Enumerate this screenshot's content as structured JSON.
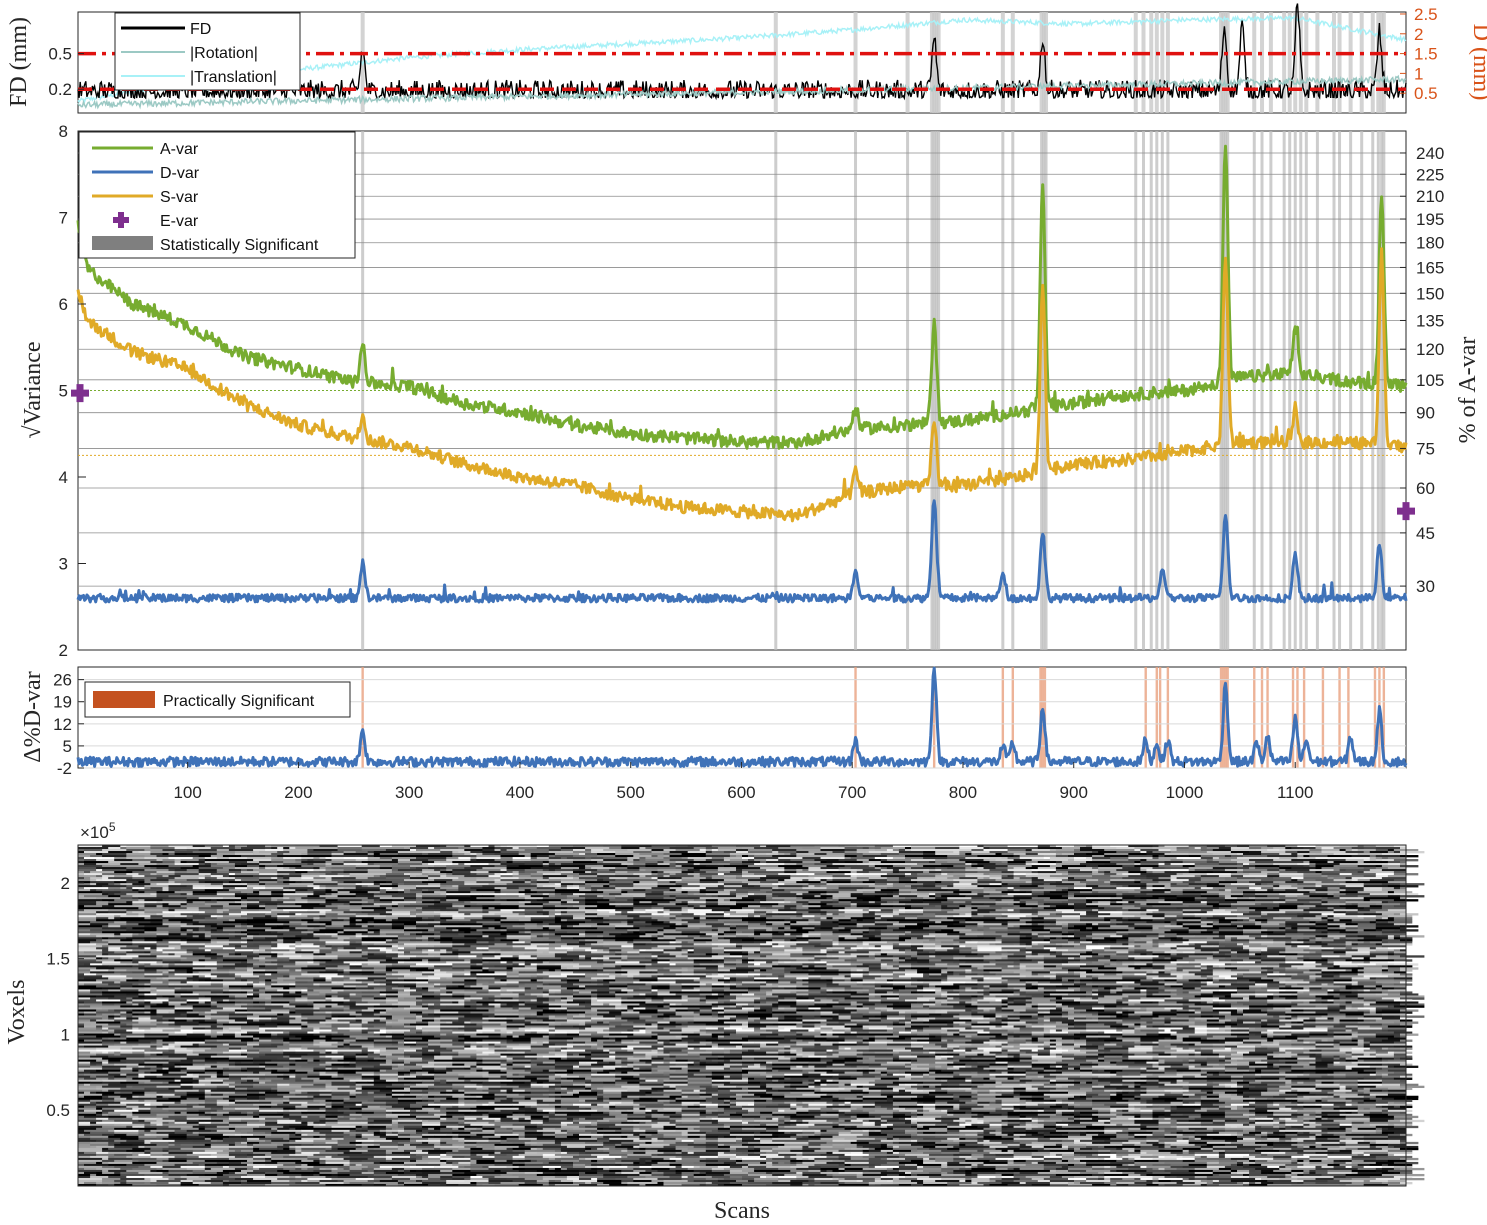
{
  "chart_data": [
    {
      "type": "line",
      "panel": "motion",
      "ylabel_left": "FD (mm)",
      "ylabel_right": "D (mm)",
      "yticks_left": [
        "0.2",
        "0.5"
      ],
      "ylim_left": [
        0,
        0.85
      ],
      "yticks_right": [
        "0.5",
        "1",
        "1.5",
        "2",
        "2.5"
      ],
      "ylim_right": [
        0,
        2.55
      ],
      "xlim": [
        1,
        1200
      ],
      "thresholds": [
        0.5,
        0.2
      ],
      "series": [
        {
          "name": "FD",
          "color": "#000000",
          "axis": "left",
          "baseline": 0.18,
          "noise": 0.07,
          "spikes": [
            [
              258,
              0.35
            ],
            [
              774,
              0.45
            ],
            [
              872,
              0.45
            ],
            [
              1036,
              0.55
            ],
            [
              1052,
              0.55
            ],
            [
              1102,
              0.7
            ],
            [
              1176,
              0.5
            ]
          ]
        },
        {
          "name": "|Rotation|",
          "color": "#9cc9c4",
          "axis": "right",
          "start": 0.2,
          "end": 0.85,
          "noise": 0.08
        },
        {
          "name": "|Translation|",
          "color": "#a8f1f7",
          "axis": "right",
          "points": [
            [
              1,
              0.3
            ],
            [
              100,
              0.8
            ],
            [
              300,
              1.4
            ],
            [
              400,
              1.6
            ],
            [
              600,
              1.9
            ],
            [
              700,
              2.1
            ],
            [
              800,
              2.35
            ],
            [
              900,
              2.25
            ],
            [
              1000,
              2.35
            ],
            [
              1100,
              2.4
            ],
            [
              1200,
              1.85
            ]
          ]
        }
      ],
      "legend": [
        "FD",
        "|Rotation|",
        "|Translation|"
      ]
    },
    {
      "type": "line",
      "panel": "dvars",
      "ylabel_left": "√Variance",
      "ylabel_right": "% of A-var",
      "yticks_left": [
        "2",
        "3",
        "4",
        "5",
        "6",
        "7",
        "8"
      ],
      "ylim": [
        2,
        8
      ],
      "yticks_right": [
        "30",
        "45",
        "60",
        "75",
        "90",
        "105",
        "120",
        "135",
        "150",
        "165",
        "180",
        "195",
        "210",
        "225",
        "240"
      ],
      "xlim": [
        1,
        1200
      ],
      "series": [
        {
          "name": "A-var",
          "color": "#77ac30",
          "points": [
            [
              1,
              6.9
            ],
            [
              10,
              6.4
            ],
            [
              50,
              6.0
            ],
            [
              100,
              5.75
            ],
            [
              150,
              5.4
            ],
            [
              200,
              5.25
            ],
            [
              250,
              5.1
            ],
            [
              300,
              5.05
            ],
            [
              350,
              4.85
            ],
            [
              400,
              4.75
            ],
            [
              450,
              4.6
            ],
            [
              500,
              4.5
            ],
            [
              550,
              4.45
            ],
            [
              600,
              4.4
            ],
            [
              650,
              4.4
            ],
            [
              700,
              4.55
            ],
            [
              750,
              4.6
            ],
            [
              800,
              4.65
            ],
            [
              850,
              4.75
            ],
            [
              900,
              4.85
            ],
            [
              950,
              4.95
            ],
            [
              1000,
              5.0
            ],
            [
              1050,
              5.15
            ],
            [
              1100,
              5.2
            ],
            [
              1150,
              5.1
            ],
            [
              1200,
              5.05
            ]
          ],
          "spikes": [
            [
              258,
              0.45
            ],
            [
              703,
              0.25
            ],
            [
              774,
              1.2
            ],
            [
              872,
              2.6
            ],
            [
              1037,
              2.7
            ],
            [
              1100,
              0.5
            ],
            [
              1178,
              2.2
            ]
          ]
        },
        {
          "name": "D-var",
          "color": "#3f72b8",
          "points": [
            [
              1,
              2.6
            ],
            [
              1200,
              2.6
            ]
          ],
          "spikes": [
            [
              258,
              0.4
            ],
            [
              703,
              0.3
            ],
            [
              774,
              1.15
            ],
            [
              836,
              0.3
            ],
            [
              872,
              0.75
            ],
            [
              980,
              0.3
            ],
            [
              1037,
              0.95
            ],
            [
              1100,
              0.5
            ],
            [
              1176,
              0.6
            ]
          ]
        },
        {
          "name": "S-var",
          "color": "#e0aa27",
          "points": [
            [
              1,
              6.15
            ],
            [
              10,
              5.8
            ],
            [
              50,
              5.45
            ],
            [
              100,
              5.25
            ],
            [
              150,
              4.85
            ],
            [
              200,
              4.6
            ],
            [
              250,
              4.45
            ],
            [
              300,
              4.35
            ],
            [
              350,
              4.15
            ],
            [
              400,
              4.0
            ],
            [
              450,
              3.9
            ],
            [
              500,
              3.75
            ],
            [
              550,
              3.65
            ],
            [
              600,
              3.6
            ],
            [
              650,
              3.55
            ],
            [
              700,
              3.8
            ],
            [
              750,
              3.9
            ],
            [
              800,
              3.9
            ],
            [
              850,
              4.0
            ],
            [
              900,
              4.15
            ],
            [
              950,
              4.2
            ],
            [
              1000,
              4.3
            ],
            [
              1050,
              4.4
            ],
            [
              1100,
              4.4
            ],
            [
              1150,
              4.4
            ],
            [
              1200,
              4.35
            ]
          ],
          "spikes": [
            [
              258,
              0.3
            ],
            [
              703,
              0.25
            ],
            [
              774,
              0.75
            ],
            [
              872,
              2.2
            ],
            [
              1037,
              2.15
            ],
            [
              1100,
              0.4
            ],
            [
              1178,
              2.2
            ]
          ]
        }
      ],
      "evar": {
        "name": "E-var",
        "color": "#7e2f8e",
        "value_left": 4.97,
        "value_right_pct": 52
      },
      "reference_lines": [
        {
          "color": "#77ac30",
          "y": 5.0
        },
        {
          "color": "#e0aa27",
          "y": 4.25
        }
      ],
      "significant_scans": [
        258,
        631,
        703,
        750,
        772,
        774,
        776,
        778,
        836,
        845,
        871,
        873,
        875,
        956,
        963,
        970,
        975,
        980,
        985,
        1033,
        1035,
        1037,
        1039,
        1063,
        1070,
        1078,
        1090,
        1095,
        1100,
        1105,
        1110,
        1120,
        1135,
        1140,
        1150,
        1160,
        1170,
        1175,
        1178,
        1180
      ],
      "legend": [
        "A-var",
        "D-var",
        "S-var",
        "E-var",
        "Statistically Significant"
      ]
    },
    {
      "type": "line",
      "panel": "delta",
      "ylabel": "Δ%D-var",
      "yticks": [
        "-2",
        "5",
        "12",
        "19",
        "26"
      ],
      "ylim": [
        -2,
        30
      ],
      "xlim": [
        1,
        1200
      ],
      "xticks": [
        "100",
        "200",
        "300",
        "400",
        "500",
        "600",
        "700",
        "800",
        "900",
        "1000",
        "1100"
      ],
      "series": [
        {
          "name": "",
          "color": "#3f72b8",
          "baseline": 0,
          "noise": 1.5,
          "spikes": [
            [
              258,
              10
            ],
            [
              703,
              7
            ],
            [
              774,
              30
            ],
            [
              836,
              5
            ],
            [
              845,
              6
            ],
            [
              872,
              18
            ],
            [
              965,
              7
            ],
            [
              975,
              6
            ],
            [
              985,
              7
            ],
            [
              1037,
              25
            ],
            [
              1065,
              6
            ],
            [
              1075,
              8
            ],
            [
              1100,
              14
            ],
            [
              1110,
              7
            ],
            [
              1150,
              8
            ],
            [
              1176,
              16
            ]
          ]
        }
      ],
      "practical_scans": [
        258,
        703,
        774,
        836,
        845,
        870,
        872,
        874,
        965,
        975,
        978,
        985,
        1033,
        1035,
        1037,
        1039,
        1063,
        1070,
        1075,
        1098,
        1102,
        1108,
        1125,
        1140,
        1148,
        1172,
        1176,
        1180
      ],
      "legend": [
        "Practically Significant"
      ]
    },
    {
      "type": "heatmap",
      "panel": "carpet",
      "xlabel": "Scans",
      "ylabel": "Voxels",
      "exponent": "×10",
      "exponent_power": "5",
      "yticks": [
        "0.5",
        "1",
        "1.5",
        "2"
      ],
      "ylim": [
        0,
        2.25
      ],
      "colormap": "gray"
    }
  ]
}
